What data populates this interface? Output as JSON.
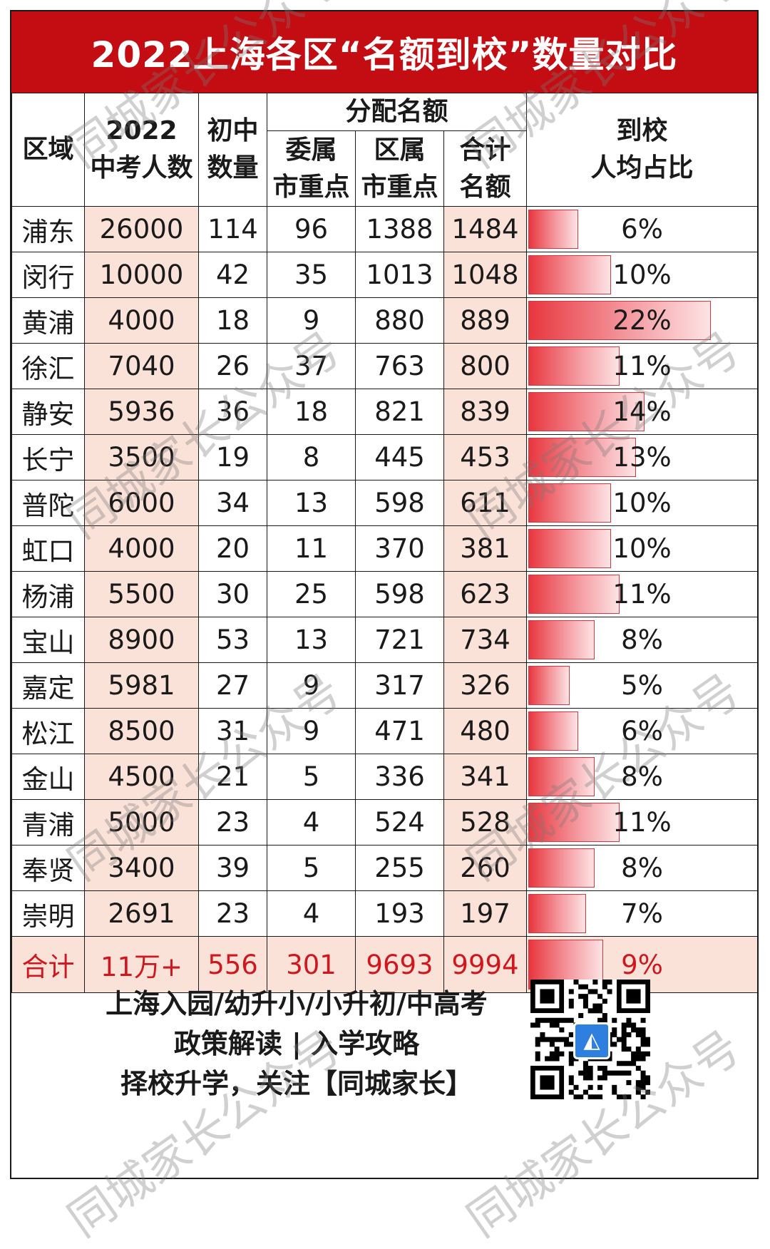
{
  "title": "2022上海各区“名额到校”数量对比",
  "headers": {
    "region": "区域",
    "exam_count": "2022\n中考人数",
    "junior_schools": "初中\n数量",
    "allocation_group": "分配名额",
    "municipal": "委属\n市重点",
    "district": "区属\n市重点",
    "total_quota": "合计\n名额",
    "ratio": "到校\n人均占比"
  },
  "chart_data": {
    "type": "table",
    "title": "2022上海各区“名额到校”数量对比",
    "columns": [
      "区域",
      "2022中考人数",
      "初中数量",
      "委属市重点",
      "区属市重点",
      "合计名额",
      "到校人均占比"
    ],
    "rows": [
      {
        "region": "浦东",
        "exam": "26000",
        "schools": "114",
        "municipal": "96",
        "district": "1388",
        "total": "1484",
        "ratio": "6%",
        "ratio_value": 6
      },
      {
        "region": "闵行",
        "exam": "10000",
        "schools": "42",
        "municipal": "35",
        "district": "1013",
        "total": "1048",
        "ratio": "10%",
        "ratio_value": 10
      },
      {
        "region": "黄浦",
        "exam": "4000",
        "schools": "18",
        "municipal": "9",
        "district": "880",
        "total": "889",
        "ratio": "22%",
        "ratio_value": 22
      },
      {
        "region": "徐汇",
        "exam": "7040",
        "schools": "26",
        "municipal": "37",
        "district": "763",
        "total": "800",
        "ratio": "11%",
        "ratio_value": 11
      },
      {
        "region": "静安",
        "exam": "5936",
        "schools": "36",
        "municipal": "18",
        "district": "821",
        "total": "839",
        "ratio": "14%",
        "ratio_value": 14
      },
      {
        "region": "长宁",
        "exam": "3500",
        "schools": "19",
        "municipal": "8",
        "district": "445",
        "total": "453",
        "ratio": "13%",
        "ratio_value": 13
      },
      {
        "region": "普陀",
        "exam": "6000",
        "schools": "34",
        "municipal": "13",
        "district": "598",
        "total": "611",
        "ratio": "10%",
        "ratio_value": 10
      },
      {
        "region": "虹口",
        "exam": "4000",
        "schools": "20",
        "municipal": "11",
        "district": "370",
        "total": "381",
        "ratio": "10%",
        "ratio_value": 10
      },
      {
        "region": "杨浦",
        "exam": "5500",
        "schools": "30",
        "municipal": "25",
        "district": "598",
        "total": "623",
        "ratio": "11%",
        "ratio_value": 11
      },
      {
        "region": "宝山",
        "exam": "8900",
        "schools": "53",
        "municipal": "13",
        "district": "721",
        "total": "734",
        "ratio": "8%",
        "ratio_value": 8
      },
      {
        "region": "嘉定",
        "exam": "5981",
        "schools": "27",
        "municipal": "9",
        "district": "317",
        "total": "326",
        "ratio": "5%",
        "ratio_value": 5
      },
      {
        "region": "松江",
        "exam": "8500",
        "schools": "31",
        "municipal": "9",
        "district": "471",
        "total": "480",
        "ratio": "6%",
        "ratio_value": 6
      },
      {
        "region": "金山",
        "exam": "4500",
        "schools": "21",
        "municipal": "5",
        "district": "336",
        "total": "341",
        "ratio": "8%",
        "ratio_value": 8
      },
      {
        "region": "青浦",
        "exam": "5000",
        "schools": "23",
        "municipal": "4",
        "district": "524",
        "total": "528",
        "ratio": "11%",
        "ratio_value": 11
      },
      {
        "region": "奉贤",
        "exam": "3400",
        "schools": "39",
        "municipal": "5",
        "district": "255",
        "total": "260",
        "ratio": "8%",
        "ratio_value": 8
      },
      {
        "region": "崇明",
        "exam": "2691",
        "schools": "23",
        "municipal": "4",
        "district": "193",
        "total": "197",
        "ratio": "7%",
        "ratio_value": 7
      }
    ],
    "total": {
      "region": "合计",
      "exam": "11万+",
      "schools": "556",
      "municipal": "301",
      "district": "9693",
      "total": "9994",
      "ratio": "9%",
      "ratio_value": 9
    },
    "ratio_max": 22
  },
  "footer": {
    "line1": "上海入园/幼升小/小升初/中高考",
    "line2": "政策解读 | 入学攻略",
    "line3": "择校升学，关注【同城家长】"
  },
  "watermark_text": "同城家长公众号",
  "colors": {
    "title_bg": "#c40d12",
    "shade": "#fbe2d8",
    "total_text": "#d0171d",
    "bar": "#e8363e"
  }
}
